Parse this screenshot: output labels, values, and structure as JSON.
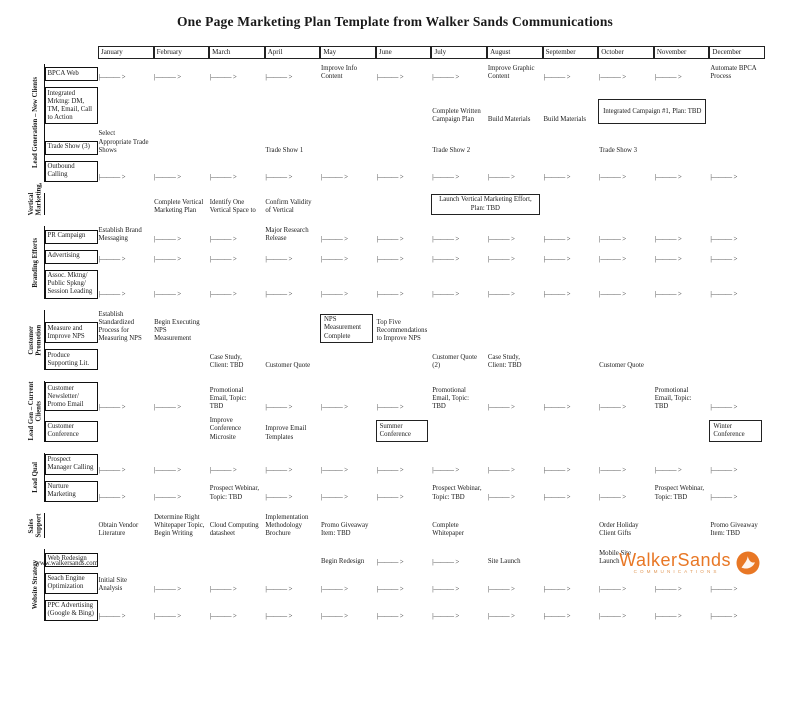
{
  "title": "One Page Marketing Plan Template from Walker Sands Communications",
  "arrow_glyph": "|——— >",
  "months": [
    "January",
    "February",
    "March",
    "April",
    "May",
    "June",
    "July",
    "August",
    "September",
    "October",
    "November",
    "December"
  ],
  "footer": {
    "website": "www.walkersands.com",
    "logo_name": "WalkerSands",
    "logo_sub": "COMMUNICATIONS"
  },
  "colors": {
    "logo_orange": "#E87725",
    "logo_sub_orange": "#E09A5B",
    "line_black": "#1a1a1a"
  },
  "sections": [
    {
      "label": "Lead Generation – New Clients",
      "rows": [
        {
          "label": "BPCA Web",
          "cells": [
            "arrow",
            "arrow",
            "arrow",
            "arrow",
            {
              "text": "Improve Info Content"
            },
            "arrow",
            "arrow",
            {
              "text": "Improve Graphic Content"
            },
            "arrow",
            "arrow",
            "arrow",
            {
              "text": "Automate BPCA Process"
            }
          ]
        },
        {
          "label": "Integrated Mrktng: DM, TM, Email, Call to Action",
          "cells": [
            "",
            "",
            "",
            "",
            "",
            "",
            {
              "text": "Complete Written Campaign Plan"
            },
            {
              "text": "Build Materials"
            },
            {
              "text": "Build Materials"
            },
            {
              "box": "Integrated Campaign #1, Plan: TBD",
              "span": 2,
              "center": true,
              "tall": true
            },
            "",
            ""
          ]
        },
        {
          "label": "Trade Show (3)",
          "cells": [
            {
              "text": "Select Appropriate Trade Shows"
            },
            "",
            "",
            {
              "text": "Trade Show 1"
            },
            "",
            "",
            {
              "text": "Trade Show 2"
            },
            "",
            "",
            {
              "text": "Trade Show 3"
            },
            "",
            ""
          ]
        },
        {
          "label": "Outbound Calling",
          "cells": [
            "arrow",
            "arrow",
            "arrow",
            "arrow",
            "arrow",
            "arrow",
            "arrow",
            "arrow",
            "arrow",
            "arrow",
            "arrow",
            "arrow"
          ]
        }
      ]
    },
    {
      "label": "Vertical Marketing,",
      "rows": [
        {
          "label": "",
          "cells": [
            "",
            {
              "text": "Complete Vertical Marketing Plan"
            },
            {
              "text": "Identify One Vertical Space to"
            },
            {
              "text": "Confirm Validity of Vertical"
            },
            "",
            "",
            {
              "box": "Launch Vertical Marketing Effort, Plan: TBD",
              "span": 2,
              "center": true
            },
            "",
            "",
            "",
            "",
            ""
          ]
        }
      ]
    },
    {
      "label": "Branding Efforts",
      "rows": [
        {
          "label": "PR Campaign",
          "cells": [
            {
              "text": "Establish Brand Messaging"
            },
            "arrow",
            "arrow",
            {
              "text": "Major Research Release"
            },
            "arrow",
            "arrow",
            "arrow",
            "arrow",
            "arrow",
            "arrow",
            "arrow",
            "arrow"
          ]
        },
        {
          "label": "Advertising",
          "cells": [
            "arrow",
            "arrow",
            "arrow",
            "arrow",
            "arrow",
            "arrow",
            "arrow",
            "arrow",
            "arrow",
            "arrow",
            "arrow",
            "arrow"
          ]
        },
        {
          "label": "Assoc. Mktng/ Public Spkng/ Session Leading",
          "cells": [
            "arrow",
            "arrow",
            "arrow",
            "arrow",
            "arrow",
            "arrow",
            "arrow",
            "arrow",
            "arrow",
            "arrow",
            "arrow",
            "arrow"
          ]
        }
      ]
    },
    {
      "label": "Customer Promotion",
      "rows": [
        {
          "label": "Measure and Improve NPS",
          "cells": [
            {
              "text": "Establish Standardized Process for Measuring NPS"
            },
            {
              "text": "Begin Executing NPS Measurement"
            },
            "",
            "",
            {
              "box": "NPS Measurement Complete"
            },
            {
              "text": "Top Five Recommendations to Improve NPS"
            },
            "",
            "",
            "",
            "",
            "",
            ""
          ]
        },
        {
          "label": "Produce Supporting Lit.",
          "cells": [
            "",
            "",
            {
              "text": "Case Study, Client: TBD"
            },
            {
              "text": "Customer Quote"
            },
            "",
            "",
            {
              "text": "Customer Quote (2)"
            },
            {
              "text": "Case Study, Client: TBD"
            },
            "",
            {
              "text": "Customer Quote"
            },
            "",
            ""
          ]
        }
      ]
    },
    {
      "label": "Lead Gen – Current Clients",
      "rows": [
        {
          "label": "Customer Newsletter/ Promo Email",
          "cells": [
            "arrow",
            "arrow",
            {
              "text": "Promotional Email, Topic: TBD"
            },
            "arrow",
            "arrow",
            "arrow",
            {
              "text": "Promotional Email, Topic: TBD"
            },
            "arrow",
            "arrow",
            "arrow",
            {
              "text": "Promotional Email, Topic: TBD"
            },
            "arrow"
          ]
        },
        {
          "label": "Customer Conference",
          "cells": [
            "",
            "",
            {
              "text": "Improve Conference Microsite"
            },
            {
              "text": "Improve Email Templates"
            },
            "",
            {
              "box": "Summer Conference"
            },
            "",
            "",
            "",
            "",
            "",
            {
              "box": "Winter Conference"
            }
          ]
        }
      ]
    },
    {
      "label": "Lead Qual",
      "rows": [
        {
          "label": "Prospect Manager Calling",
          "cells": [
            "arrow",
            "arrow",
            "arrow",
            "arrow",
            "arrow",
            "arrow",
            "arrow",
            "arrow",
            "arrow",
            "arrow",
            "arrow",
            "arrow"
          ]
        },
        {
          "label": "Nurture Marketing",
          "cells": [
            "arrow",
            "arrow",
            {
              "text": "Prospect Webinar, Topic: TBD"
            },
            "arrow",
            "arrow",
            "arrow",
            {
              "text": "Prospect Webinar, Topic: TBD"
            },
            "arrow",
            "arrow",
            "arrow",
            {
              "text": "Prospect Webinar, Topic: TBD"
            },
            "arrow"
          ]
        }
      ]
    },
    {
      "label": "Sales Support",
      "rows": [
        {
          "label": "",
          "cells": [
            {
              "text": "Obtain Vendor Literature"
            },
            {
              "text": "Determine Right Whitepaper Topic, Begin Writing"
            },
            {
              "text": "Cloud Computing datasheet"
            },
            {
              "text": "Implementation Methodology Brochure"
            },
            {
              "text": "Promo Giveaway Item: TBD"
            },
            "",
            {
              "text": "Complete Whitepaper"
            },
            "",
            "",
            {
              "text": "Order Holiday Client Gifts"
            },
            "",
            {
              "text": "Promo Giveaway Item: TBD"
            }
          ]
        }
      ]
    },
    {
      "label": "Website Strategy",
      "rows": [
        {
          "label": "Web Redesign",
          "cells": [
            "",
            "",
            "",
            "",
            {
              "text": "Begin Redesign"
            },
            "arrow",
            "arrow",
            {
              "text": "Site Launch"
            },
            "",
            {
              "text": "Mobile Site Launch"
            },
            "",
            ""
          ]
        },
        {
          "label": "Seach Engine Optimization",
          "cells": [
            {
              "text": "Initial Site Analysis"
            },
            "arrow",
            "arrow",
            "arrow",
            "arrow",
            "arrow",
            "arrow",
            "arrow",
            "arrow",
            "arrow",
            "arrow",
            "arrow"
          ]
        },
        {
          "label": "PPC Advertising (Google & Bing)",
          "cells": [
            "arrow",
            "arrow",
            "arrow",
            "arrow",
            "arrow",
            "arrow",
            "arrow",
            "arrow",
            "arrow",
            "arrow",
            "arrow",
            "arrow"
          ]
        }
      ]
    }
  ]
}
